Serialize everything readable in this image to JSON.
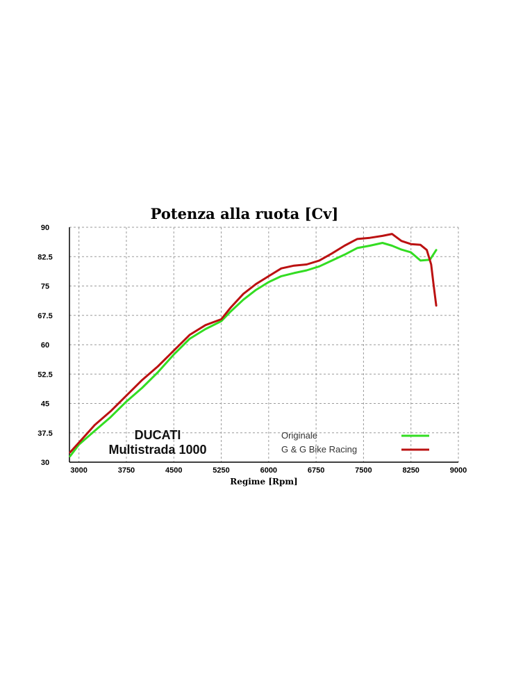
{
  "chart_data": {
    "type": "line",
    "title": "Potenza alla ruota [Cv]",
    "xlabel": "Regime [Rpm]",
    "ylabel": "",
    "xlim": [
      2850,
      9000
    ],
    "ylim": [
      30,
      90
    ],
    "x_ticks": [
      "3000",
      "3750",
      "4500",
      "5250",
      "6000",
      "6750",
      "7500",
      "8250",
      "9000"
    ],
    "y_ticks": [
      "90",
      "82.5",
      "75",
      "67.5",
      "60",
      "52.5",
      "45",
      "37.5",
      "30"
    ],
    "x_tick_values": [
      3000,
      3750,
      4500,
      5250,
      6000,
      6750,
      7500,
      8250,
      9000
    ],
    "y_tick_values": [
      90,
      82.5,
      75,
      67.5,
      60,
      52.5,
      45,
      37.5,
      30
    ],
    "grid": true,
    "brand_line1": "DUCATI",
    "brand_line2": "Multistrada 1000",
    "series": [
      {
        "name": "Originale",
        "color": "#33dd22",
        "x": [
          2860,
          3000,
          3250,
          3500,
          3750,
          4000,
          4250,
          4500,
          4750,
          5000,
          5250,
          5400,
          5600,
          5800,
          6000,
          6200,
          6400,
          6600,
          6800,
          7000,
          7200,
          7400,
          7600,
          7800,
          7950,
          8100,
          8250,
          8400,
          8550,
          8650
        ],
        "y": [
          31.5,
          34.5,
          38.0,
          41.5,
          45.5,
          49.0,
          53.0,
          57.5,
          61.5,
          64.0,
          66.0,
          68.5,
          71.5,
          74.0,
          76.0,
          77.5,
          78.3,
          79.0,
          80.0,
          81.5,
          83.0,
          84.7,
          85.3,
          86.0,
          85.3,
          84.3,
          83.6,
          81.5,
          81.7,
          84.2
        ]
      },
      {
        "name": "G & G Bike Racing",
        "color": "#bb1111",
        "x": [
          2860,
          3000,
          3250,
          3500,
          3750,
          4000,
          4250,
          4500,
          4750,
          5000,
          5250,
          5400,
          5600,
          5800,
          6000,
          6200,
          6400,
          6600,
          6800,
          7000,
          7200,
          7400,
          7600,
          7800,
          7950,
          8100,
          8250,
          8400,
          8500,
          8570,
          8610,
          8650
        ],
        "y": [
          32.5,
          35.0,
          39.5,
          43.0,
          47.0,
          51.0,
          54.5,
          58.5,
          62.5,
          65.0,
          66.5,
          69.5,
          73.0,
          75.5,
          77.5,
          79.5,
          80.2,
          80.5,
          81.5,
          83.3,
          85.3,
          87.0,
          87.3,
          87.8,
          88.3,
          86.5,
          85.7,
          85.5,
          84.2,
          80.5,
          75.0,
          70.0
        ]
      }
    ]
  }
}
